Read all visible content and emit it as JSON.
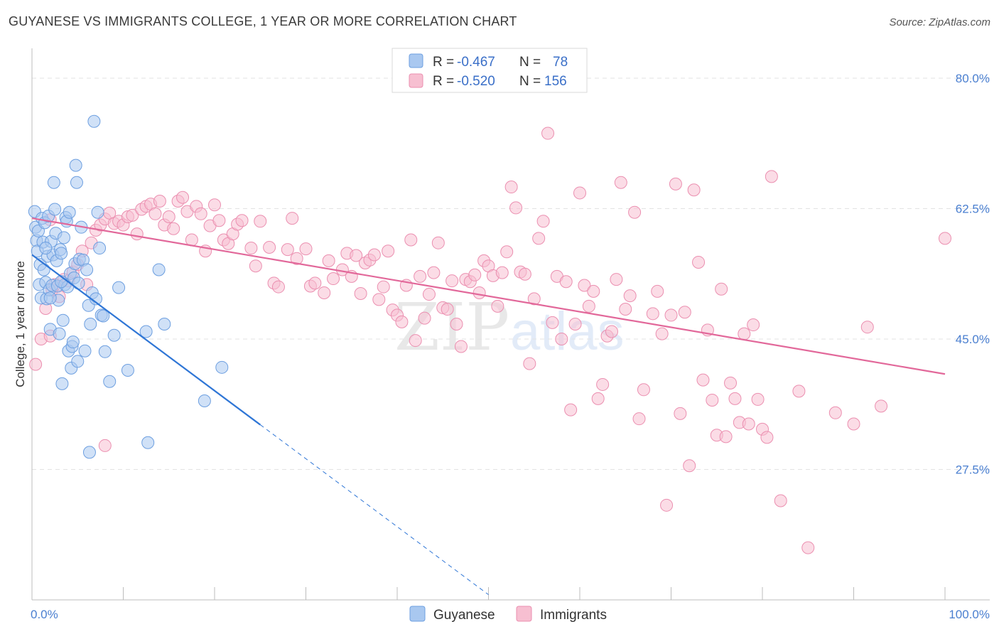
{
  "title": "GUYANESE VS IMMIGRANTS COLLEGE, 1 YEAR OR MORE CORRELATION CHART",
  "source": "Source: ZipAtlas.com",
  "watermark": {
    "zip": "ZIP",
    "atlas": "atlas"
  },
  "colors": {
    "guyanese_fill": "#a9c8f0",
    "guyanese_stroke": "#6d9fe0",
    "guyanese_line": "#2f76d6",
    "immigrants_fill": "#f7bfd1",
    "immigrants_stroke": "#eb8fb0",
    "immigrants_line": "#e2689a",
    "grid": "#e3e3e3",
    "tick_label": "#4a7fd0"
  },
  "chart_data": {
    "type": "scatter",
    "title": "GUYANESE VS IMMIGRANTS COLLEGE, 1 YEAR OR MORE CORRELATION CHART",
    "xlabel": "",
    "ylabel": "College, 1 year or more",
    "xlim": [
      0,
      100
    ],
    "ylim": [
      10,
      84
    ],
    "x_tick_labels": [
      "0.0%",
      "100.0%"
    ],
    "y_ticks": [
      27.5,
      45.0,
      62.5,
      80.0
    ],
    "y_tick_labels": [
      "27.5%",
      "45.0%",
      "62.5%",
      "80.0%"
    ],
    "grid": true,
    "legend_position": "top-center",
    "stats": [
      {
        "label_r": "R =",
        "r": "-0.467",
        "label_n": "N =",
        "n": "78"
      },
      {
        "label_r": "R =",
        "r": "-0.520",
        "label_n": "N =",
        "n": "156"
      }
    ],
    "series": [
      {
        "name": "Guyanese",
        "trend": {
          "x0": 0,
          "y0": 56.3,
          "x1": 25,
          "y1": 33.5,
          "dash_x1": 50,
          "dash_y1": 10.7
        },
        "points": [
          [
            0.3,
            62.1
          ],
          [
            0.4,
            60.0
          ],
          [
            0.5,
            58.2
          ],
          [
            0.6,
            56.8
          ],
          [
            0.7,
            59.5
          ],
          [
            0.8,
            52.3
          ],
          [
            0.9,
            55.0
          ],
          [
            1.0,
            50.5
          ],
          [
            1.1,
            61.2
          ],
          [
            1.2,
            58.0
          ],
          [
            1.3,
            54.3
          ],
          [
            1.4,
            60.6
          ],
          [
            1.5,
            52.6
          ],
          [
            1.6,
            50.4
          ],
          [
            1.7,
            56.1
          ],
          [
            1.8,
            61.5
          ],
          [
            1.9,
            51.6
          ],
          [
            2.0,
            46.3
          ],
          [
            2.1,
            58.1
          ],
          [
            2.2,
            52.2
          ],
          [
            2.3,
            56.3
          ],
          [
            2.4,
            66.0
          ],
          [
            2.5,
            62.4
          ],
          [
            2.6,
            59.2
          ],
          [
            2.7,
            55.5
          ],
          [
            2.8,
            52.1
          ],
          [
            2.9,
            50.2
          ],
          [
            3.0,
            45.7
          ],
          [
            3.1,
            57.0
          ],
          [
            3.2,
            56.5
          ],
          [
            3.3,
            39.0
          ],
          [
            3.4,
            47.5
          ],
          [
            3.5,
            58.6
          ],
          [
            3.6,
            52.3
          ],
          [
            3.7,
            61.3
          ],
          [
            3.8,
            60.8
          ],
          [
            3.9,
            52.0
          ],
          [
            4.0,
            43.4
          ],
          [
            4.1,
            62.0
          ],
          [
            4.2,
            53.8
          ],
          [
            4.3,
            41.1
          ],
          [
            4.4,
            44.0
          ],
          [
            4.5,
            44.6
          ],
          [
            4.6,
            53.2
          ],
          [
            4.7,
            55.1
          ],
          [
            4.8,
            68.3
          ],
          [
            4.9,
            66.0
          ],
          [
            5.0,
            42.0
          ],
          [
            5.1,
            52.5
          ],
          [
            5.2,
            55.7
          ],
          [
            5.4,
            60.0
          ],
          [
            5.6,
            55.6
          ],
          [
            5.8,
            43.4
          ],
          [
            6.0,
            54.3
          ],
          [
            6.2,
            49.5
          ],
          [
            6.4,
            47.0
          ],
          [
            6.6,
            51.2
          ],
          [
            6.8,
            74.2
          ],
          [
            7.0,
            50.4
          ],
          [
            7.2,
            62.0
          ],
          [
            7.4,
            57.2
          ],
          [
            7.6,
            48.2
          ],
          [
            7.8,
            48.1
          ],
          [
            8.0,
            43.3
          ],
          [
            8.5,
            39.3
          ],
          [
            9.0,
            45.5
          ],
          [
            9.5,
            51.9
          ],
          [
            10.5,
            40.8
          ],
          [
            12.5,
            46.0
          ],
          [
            12.7,
            31.1
          ],
          [
            13.9,
            54.3
          ],
          [
            14.5,
            47.0
          ],
          [
            18.9,
            36.7
          ],
          [
            20.8,
            41.2
          ],
          [
            1.5,
            57.2
          ],
          [
            2.0,
            50.5
          ],
          [
            3.2,
            52.7
          ],
          [
            6.3,
            29.8
          ]
        ]
      },
      {
        "name": "Immigrants",
        "trend": {
          "x0": 0,
          "y0": 61.2,
          "x1": 100,
          "y1": 40.3
        },
        "points": [
          [
            0.4,
            41.6
          ],
          [
            1.0,
            45.0
          ],
          [
            1.5,
            49.1
          ],
          [
            2.0,
            61.0
          ],
          [
            2.2,
            51.6
          ],
          [
            2.5,
            52.3
          ],
          [
            3.0,
            50.7
          ],
          [
            3.5,
            53.0
          ],
          [
            4.0,
            52.8
          ],
          [
            4.5,
            54.0
          ],
          [
            5.0,
            55.0
          ],
          [
            5.5,
            56.8
          ],
          [
            6.0,
            52.3
          ],
          [
            6.5,
            57.9
          ],
          [
            7.0,
            59.6
          ],
          [
            7.5,
            60.3
          ],
          [
            8.0,
            61.1
          ],
          [
            8.5,
            61.9
          ],
          [
            9.0,
            60.5
          ],
          [
            9.5,
            60.8
          ],
          [
            10.0,
            60.3
          ],
          [
            10.5,
            61.4
          ],
          [
            11.0,
            61.6
          ],
          [
            11.5,
            59.1
          ],
          [
            12.0,
            62.4
          ],
          [
            12.5,
            62.8
          ],
          [
            13.0,
            63.1
          ],
          [
            13.5,
            61.8
          ],
          [
            14.0,
            63.5
          ],
          [
            14.5,
            60.3
          ],
          [
            15.0,
            61.4
          ],
          [
            15.5,
            59.8
          ],
          [
            16.0,
            63.5
          ],
          [
            16.5,
            64.0
          ],
          [
            17.0,
            62.1
          ],
          [
            17.5,
            58.3
          ],
          [
            18.0,
            62.8
          ],
          [
            18.5,
            61.8
          ],
          [
            19.0,
            56.8
          ],
          [
            19.5,
            60.2
          ],
          [
            20.0,
            63.0
          ],
          [
            20.5,
            60.9
          ],
          [
            21.0,
            58.3
          ],
          [
            21.5,
            57.8
          ],
          [
            22.0,
            59.1
          ],
          [
            22.5,
            60.4
          ],
          [
            23.0,
            60.9
          ],
          [
            24.0,
            57.2
          ],
          [
            24.5,
            54.8
          ],
          [
            25.0,
            60.8
          ],
          [
            26.0,
            57.3
          ],
          [
            26.5,
            52.5
          ],
          [
            27.0,
            52.0
          ],
          [
            28.0,
            57.0
          ],
          [
            28.5,
            61.2
          ],
          [
            29.0,
            55.8
          ],
          [
            30.0,
            57.1
          ],
          [
            30.5,
            52.1
          ],
          [
            31.0,
            52.5
          ],
          [
            32.0,
            51.2
          ],
          [
            32.5,
            55.5
          ],
          [
            33.0,
            53.1
          ],
          [
            34.0,
            54.3
          ],
          [
            34.5,
            56.5
          ],
          [
            35.0,
            53.4
          ],
          [
            35.5,
            56.2
          ],
          [
            36.0,
            51.1
          ],
          [
            36.5,
            55.2
          ],
          [
            37.0,
            55.6
          ],
          [
            37.5,
            56.3
          ],
          [
            38.0,
            50.3
          ],
          [
            38.5,
            52.0
          ],
          [
            39.0,
            56.8
          ],
          [
            39.5,
            48.9
          ],
          [
            40.0,
            48.2
          ],
          [
            40.5,
            47.3
          ],
          [
            41.0,
            52.2
          ],
          [
            41.5,
            58.3
          ],
          [
            42.0,
            44.8
          ],
          [
            42.5,
            53.4
          ],
          [
            43.0,
            47.8
          ],
          [
            43.5,
            51.0
          ],
          [
            44.0,
            53.9
          ],
          [
            44.5,
            57.9
          ],
          [
            45.0,
            49.2
          ],
          [
            45.5,
            49.0
          ],
          [
            46.0,
            52.8
          ],
          [
            46.5,
            47.0
          ],
          [
            47.0,
            44.0
          ],
          [
            47.5,
            53.0
          ],
          [
            48.0,
            52.7
          ],
          [
            48.5,
            53.6
          ],
          [
            49.0,
            51.2
          ],
          [
            49.5,
            55.5
          ],
          [
            50.0,
            54.8
          ],
          [
            50.5,
            53.5
          ],
          [
            51.0,
            49.4
          ],
          [
            51.5,
            53.9
          ],
          [
            52.0,
            56.7
          ],
          [
            52.5,
            65.4
          ],
          [
            53.0,
            62.6
          ],
          [
            53.5,
            54.0
          ],
          [
            54.0,
            53.7
          ],
          [
            54.5,
            41.7
          ],
          [
            55.0,
            50.4
          ],
          [
            55.5,
            58.5
          ],
          [
            56.0,
            60.8
          ],
          [
            56.5,
            72.6
          ],
          [
            57.0,
            47.2
          ],
          [
            57.5,
            53.4
          ],
          [
            58.0,
            45.0
          ],
          [
            58.5,
            52.7
          ],
          [
            59.0,
            35.5
          ],
          [
            59.5,
            47.0
          ],
          [
            60.0,
            64.6
          ],
          [
            60.5,
            52.2
          ],
          [
            61.0,
            49.4
          ],
          [
            61.5,
            51.4
          ],
          [
            62.0,
            37.0
          ],
          [
            62.5,
            38.9
          ],
          [
            63.0,
            45.4
          ],
          [
            63.5,
            46.0
          ],
          [
            64.0,
            53.0
          ],
          [
            64.5,
            66.0
          ],
          [
            65.0,
            49.0
          ],
          [
            65.5,
            50.8
          ],
          [
            66.0,
            62.0
          ],
          [
            66.5,
            34.3
          ],
          [
            67.0,
            38.2
          ],
          [
            68.0,
            48.4
          ],
          [
            68.5,
            51.4
          ],
          [
            69.0,
            45.7
          ],
          [
            69.5,
            22.7
          ],
          [
            70.0,
            48.2
          ],
          [
            70.5,
            65.8
          ],
          [
            71.0,
            35.0
          ],
          [
            71.5,
            48.6
          ],
          [
            72.0,
            28.0
          ],
          [
            72.5,
            65.0
          ],
          [
            73.0,
            55.3
          ],
          [
            73.5,
            39.5
          ],
          [
            74.0,
            46.2
          ],
          [
            74.5,
            36.8
          ],
          [
            75.0,
            32.1
          ],
          [
            75.5,
            51.7
          ],
          [
            76.0,
            31.9
          ],
          [
            76.5,
            39.1
          ],
          [
            77.0,
            37.0
          ],
          [
            77.5,
            33.8
          ],
          [
            78.0,
            45.7
          ],
          [
            78.5,
            33.6
          ],
          [
            79.0,
            46.9
          ],
          [
            79.5,
            36.9
          ],
          [
            80.0,
            32.9
          ],
          [
            80.5,
            31.8
          ],
          [
            81.0,
            66.8
          ],
          [
            82.0,
            23.3
          ],
          [
            84.0,
            38.0
          ],
          [
            85.0,
            17.0
          ],
          [
            88.0,
            35.1
          ],
          [
            90.0,
            33.6
          ],
          [
            91.5,
            46.6
          ],
          [
            93.0,
            36.0
          ],
          [
            100.0,
            58.5
          ],
          [
            8.0,
            30.7
          ],
          [
            2.0,
            45.4
          ]
        ]
      }
    ]
  },
  "legend": {
    "items": [
      {
        "name": "Guyanese"
      },
      {
        "name": "Immigrants"
      }
    ]
  }
}
